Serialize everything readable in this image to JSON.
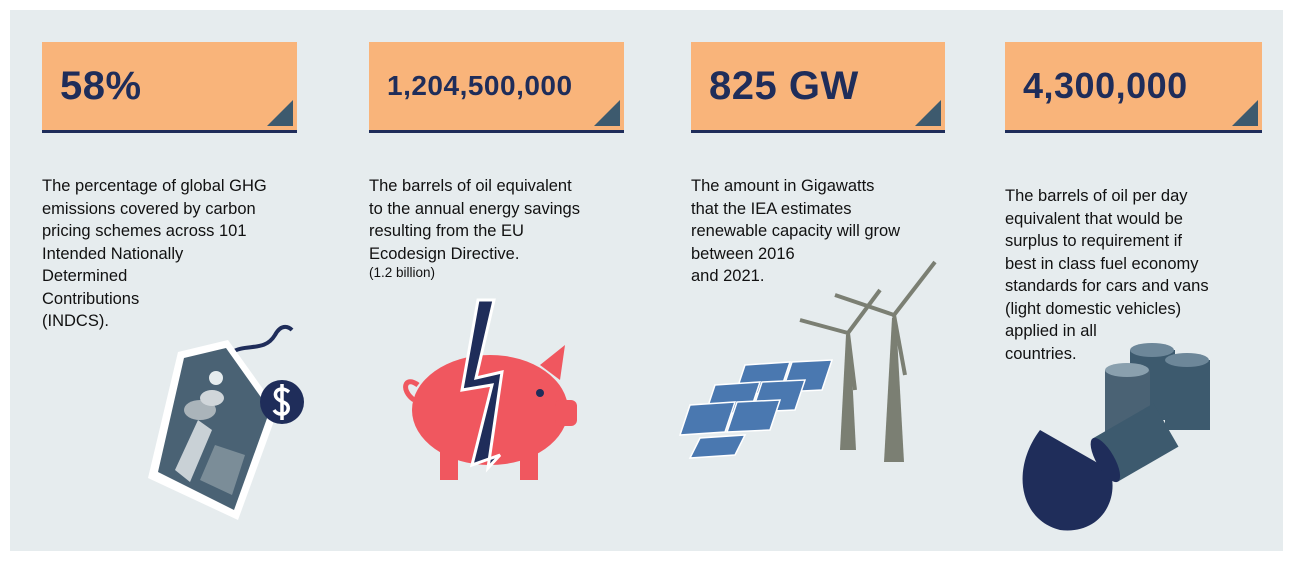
{
  "cards": [
    {
      "headline": "58%",
      "description": [
        "The percentage of global GHG",
        "emissions covered by carbon",
        "pricing schemes across 101",
        "Intended Nationally",
        "Determined",
        "Contributions",
        "(INDCS)."
      ]
    },
    {
      "headline": "1,204,500,000",
      "description": [
        "The barrels of oil equivalent",
        "to the annual energy savings",
        "resulting from the EU",
        "Ecodesign Directive."
      ],
      "note": "(1.2 billion)"
    },
    {
      "headline": "825 GW",
      "description": [
        "The amount in Gigawatts",
        "that the IEA estimates",
        "renewable capacity will grow",
        "between 2016",
        "and 2021."
      ]
    },
    {
      "headline": "4,300,000",
      "description": [
        "The barrels of oil per day",
        "equivalent that would be",
        "surplus to requirement if",
        "best in class fuel economy",
        "standards for cars and vans",
        "(light domestic vehicles)",
        "applied in all",
        "countries."
      ]
    }
  ]
}
